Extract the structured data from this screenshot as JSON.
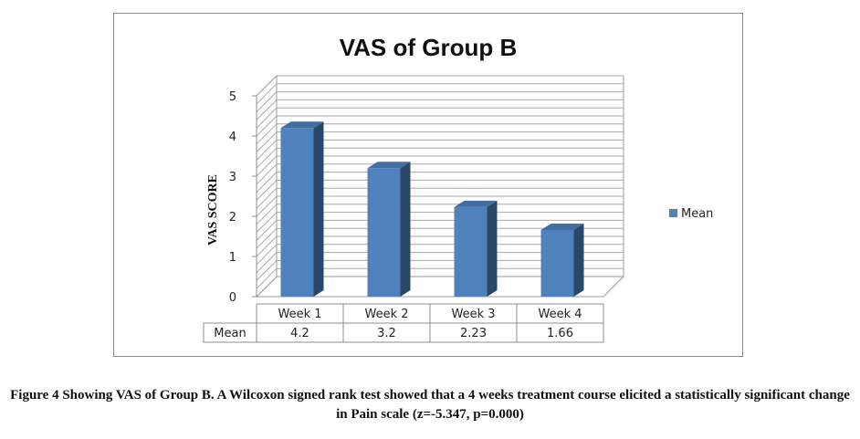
{
  "chart_data": {
    "type": "bar",
    "title": "VAS of Group B",
    "ylabel": "VAS SCORE",
    "xlabel": "",
    "categories": [
      "Week 1",
      "Week 2",
      "Week 3",
      "Week 4"
    ],
    "series": [
      {
        "name": "Mean",
        "values": [
          4.2,
          3.2,
          2.23,
          1.66
        ],
        "labels": [
          "4.2",
          "3.2",
          "2.23",
          "1.66"
        ]
      }
    ],
    "ylim": [
      0,
      5
    ],
    "yticks": [
      0,
      1,
      2,
      3,
      4,
      5
    ],
    "grid": true,
    "three_d": true,
    "legend_position": "right",
    "data_table": true,
    "bar_color": "#4f81bd"
  },
  "caption": "Figure 4 Showing VAS of Group B. A Wilcoxon signed rank test showed that a 4 weeks treatment course elicited a statistically significant change in Pain scale (z=-5.347, p=0.000)"
}
